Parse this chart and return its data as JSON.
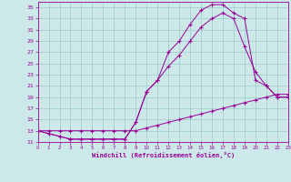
{
  "bg_color": "#cce8e8",
  "line_color": "#990099",
  "grid_color": "#99cccc",
  "xlabel": "Windchill (Refroidissement éolien,°C)",
  "xlim": [
    0,
    23
  ],
  "ylim": [
    11,
    36
  ],
  "yticks": [
    11,
    13,
    15,
    17,
    19,
    21,
    23,
    25,
    27,
    29,
    31,
    33,
    35
  ],
  "xticks": [
    0,
    1,
    2,
    3,
    4,
    5,
    6,
    7,
    8,
    9,
    10,
    11,
    12,
    13,
    14,
    15,
    16,
    17,
    18,
    19,
    20,
    21,
    22,
    23
  ],
  "curve1_x": [
    0,
    1,
    2,
    3,
    4,
    5,
    6,
    7,
    8,
    9,
    10,
    11,
    12,
    13,
    14,
    15,
    16,
    17,
    18,
    19,
    20,
    21,
    22,
    23
  ],
  "curve1_y": [
    13,
    12.5,
    12,
    11.5,
    11.5,
    11.5,
    11.5,
    11.5,
    11.5,
    14.5,
    20,
    22,
    27,
    29,
    32,
    34.5,
    35.5,
    35.5,
    34,
    33,
    22,
    21,
    19,
    19
  ],
  "curve2_x": [
    0,
    1,
    2,
    3,
    4,
    5,
    6,
    7,
    8,
    9,
    10,
    11,
    12,
    13,
    14,
    15,
    16,
    17,
    18,
    19,
    20,
    21,
    22,
    23
  ],
  "curve2_y": [
    13,
    12.5,
    12,
    11.5,
    11.5,
    11.5,
    11.5,
    11.5,
    11.5,
    14.5,
    20,
    22,
    24.5,
    26.5,
    29,
    31.5,
    33,
    34,
    33,
    28,
    23.5,
    21,
    19,
    19
  ],
  "curve3_x": [
    0,
    1,
    2,
    3,
    4,
    5,
    6,
    7,
    8,
    9,
    10,
    11,
    12,
    13,
    14,
    15,
    16,
    17,
    18,
    19,
    20,
    21,
    22,
    23
  ],
  "curve3_y": [
    13,
    13,
    13,
    13,
    13,
    13,
    13,
    13,
    13,
    13,
    13.5,
    14,
    14.5,
    15,
    15.5,
    16,
    16.5,
    17,
    17.5,
    18,
    18.5,
    19,
    19.5,
    19.5
  ]
}
